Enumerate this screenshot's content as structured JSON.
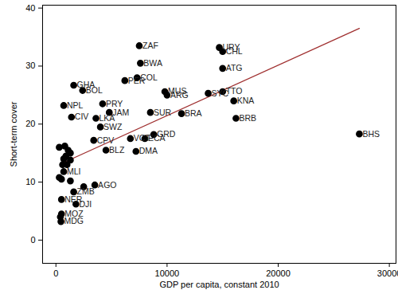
{
  "chart_data": {
    "type": "scatter",
    "x_label": "GDP per capita, constant 2010",
    "y_label": "Short-term cover",
    "labels": [
      "ZAF",
      "URY",
      "CHL",
      "BWA",
      "ATG",
      "COL",
      "PER",
      "GHA",
      "BOL",
      "MUS",
      "ARG",
      "SYC",
      "TTO",
      "KNA",
      "NPL",
      "PRY",
      "JAM",
      "SUR",
      "BRA",
      "LKA",
      "CIV",
      "BRB",
      "SWZ",
      "BHS",
      "GRD",
      "CPV",
      "VCT",
      "ECA",
      "BLZ",
      "DMA",
      null,
      null,
      null,
      null,
      null,
      null,
      null,
      null,
      null,
      "MLI",
      null,
      null,
      null,
      "AGO",
      null,
      "ZMB",
      "DJI",
      "NER",
      "MOZ",
      null,
      "MDG"
    ],
    "x": [
      7500,
      14700,
      15000,
      7600,
      15000,
      7300,
      6200,
      1600,
      2400,
      9800,
      10000,
      13700,
      15000,
      16000,
      700,
      4200,
      4800,
      8500,
      11300,
      3600,
      1400,
      16200,
      4000,
      27300,
      8800,
      3400,
      6700,
      8000,
      4500,
      7200,
      300,
      800,
      1100,
      1300,
      900,
      700,
      1300,
      600,
      1000,
      700,
      300,
      500,
      1300,
      3500,
      2500,
      1600,
      1800,
      500,
      500,
      400,
      450
    ],
    "values": [
      33.5,
      33.2,
      32.5,
      30.5,
      29.6,
      28.0,
      27.5,
      26.7,
      25.8,
      25.6,
      25.0,
      25.3,
      25.6,
      24.0,
      23.2,
      23.5,
      22.0,
      22.0,
      21.8,
      21.0,
      21.2,
      21.0,
      19.5,
      18.3,
      18.2,
      17.2,
      17.5,
      17.5,
      15.5,
      15.3,
      16.0,
      16.2,
      15.5,
      15.0,
      14.5,
      14.0,
      13.8,
      13.0,
      13.0,
      11.8,
      10.8,
      10.5,
      10.2,
      9.5,
      9.2,
      8.3,
      6.2,
      7.0,
      4.5,
      4.0,
      3.2
    ],
    "color": "#000000",
    "marker": "circle",
    "fit_line": {
      "x": [
        500,
        27300
      ],
      "values": [
        13.2,
        36.5
      ],
      "color": "#a03030"
    },
    "xlim": [
      -1200,
      30600
    ],
    "ylim": [
      -4,
      40.5
    ],
    "xticks": [
      0,
      10000,
      20000,
      30000
    ],
    "yticks": [
      0,
      10,
      20,
      30,
      40
    ],
    "grid": false
  }
}
